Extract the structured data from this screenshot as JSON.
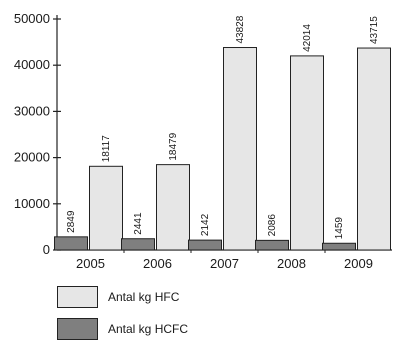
{
  "chart_data": {
    "type": "bar",
    "categories": [
      "2005",
      "2006",
      "2007",
      "2008",
      "2009"
    ],
    "series": [
      {
        "name": "Antal kg HCFC",
        "values": [
          2849,
          2441,
          2142,
          2086,
          1459
        ],
        "color": "#7f7f7f"
      },
      {
        "name": "Antal kg HFC",
        "values": [
          18117,
          18479,
          43828,
          42014,
          43715
        ],
        "color": "#e6e6e6"
      }
    ],
    "ylim": [
      0,
      50000
    ],
    "yticks": [
      0,
      10000,
      20000,
      30000,
      40000,
      50000
    ],
    "ytick_labels": [
      "0",
      "10000",
      "20000",
      "30000",
      "40000",
      "50000"
    ],
    "grid": false,
    "legend_position": "bottom-left"
  },
  "legend": {
    "items": [
      {
        "label": "Antal kg HFC",
        "color": "#e6e6e6"
      },
      {
        "label": "Antal kg HCFC",
        "color": "#7f7f7f"
      }
    ]
  }
}
